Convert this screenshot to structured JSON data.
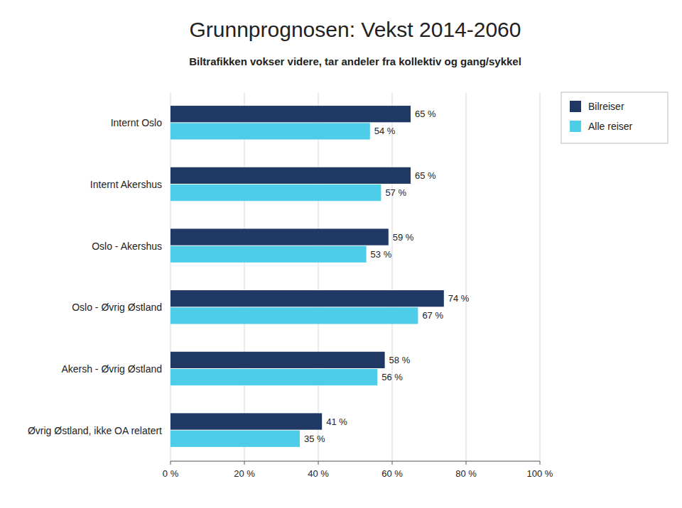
{
  "chart_data": {
    "type": "bar",
    "orientation": "horizontal",
    "title": "Grunnprognosen: Vekst 2014-2060",
    "subtitle": "Biltrafikken vokser videre, tar andeler fra kollektiv og gang/sykkel",
    "categories": [
      "Internt Oslo",
      "Internt Akershus",
      "Oslo - Akershus",
      "Oslo - Øvrig Østland",
      "Akersh - Øvrig Østland",
      "Øvrig Østland, ikke OA relatert"
    ],
    "series": [
      {
        "name": "Bilreiser",
        "color": "#1f3864",
        "values": [
          65,
          65,
          59,
          74,
          58,
          41
        ],
        "value_labels": [
          "65 %",
          "65 %",
          "59 %",
          "74 %",
          "58 %",
          "41 %"
        ]
      },
      {
        "name": "Alle reiser",
        "color": "#4ecde8",
        "values": [
          54,
          57,
          53,
          67,
          56,
          35
        ],
        "value_labels": [
          "54 %",
          "57 %",
          "53 %",
          "67 %",
          "56 %",
          "35 %"
        ]
      }
    ],
    "xlim": [
      0,
      100
    ],
    "xticks": [
      {
        "value": 0,
        "label": "0 %"
      },
      {
        "value": 20,
        "label": "20 %"
      },
      {
        "value": 40,
        "label": "40 %"
      },
      {
        "value": 60,
        "label": "60 %"
      },
      {
        "value": 80,
        "label": "80 %"
      },
      {
        "value": 100,
        "label": "100 %"
      }
    ],
    "grid": true,
    "data_labels": true,
    "legend": "upper right"
  }
}
